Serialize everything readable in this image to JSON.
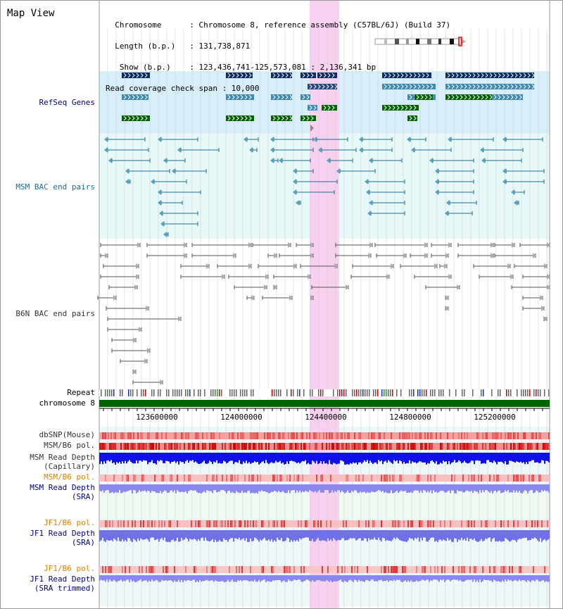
{
  "title": "Map View",
  "info": {
    "lines": [
      "  Chromosome      : Chromosome 8, reference assembly (C57BL/6J) (Build 37)",
      "  Length (b.p.)   : 131,738,871",
      "   Show (b.p.)    : 123,436,741-125,573,081 : 2,136,341 bp",
      "Read coverage check span : 10,000"
    ]
  },
  "tracks": {
    "refseq": {
      "label": "RefSeq Genes",
      "color": "#00008b"
    },
    "msm_bac": {
      "label": "MSM BAC end pairs",
      "color": "#1e6e8c"
    },
    "b6n_bac": {
      "label": "B6N BAC end pairs",
      "color": "#333333"
    },
    "repeat": {
      "label": "Repeat"
    },
    "chromosome": {
      "label": "chromosome 8",
      "color": "#006400"
    },
    "dbsnp": {
      "label": "dbSNP(Mouse)"
    },
    "msm_b6_pol": {
      "label": "MSM/B6 pol."
    },
    "msm_depth_cap": {
      "label1": "MSM Read Depth",
      "label2": "(Capillary)"
    },
    "msm_b6_pol2": {
      "label": "MSM/B6 pol.",
      "color": "#e08000"
    },
    "msm_depth_sra": {
      "label1": "MSM Read Depth",
      "label2": "(SRA)"
    },
    "jf1_b6_pol": {
      "label": "JF1/B6 pol.",
      "color": "#e08000"
    },
    "jf1_depth_sra": {
      "label1": "JF1 Read Depth",
      "label2": "(SRA)"
    },
    "jf1_b6_pol2": {
      "label": "JF1/B6 pol.",
      "color": "#e08000"
    },
    "jf1_depth_trim": {
      "label1": "JF1 Read Depth",
      "label2": "(SRA trimmed)"
    }
  },
  "axis": {
    "ticks": [
      "123600000",
      "124000000",
      "124400000",
      "124800000",
      "125200000"
    ]
  },
  "colors": {
    "highlight": "#f8d0f0",
    "refseq_bg": "#d8effa",
    "msm_bg": "#e6f8f8",
    "lane_bg": "#eaf7f7",
    "dark_gene": "#0a2a6a",
    "mid_gene": "#3d8ab5",
    "green_gene": "#006400"
  }
}
